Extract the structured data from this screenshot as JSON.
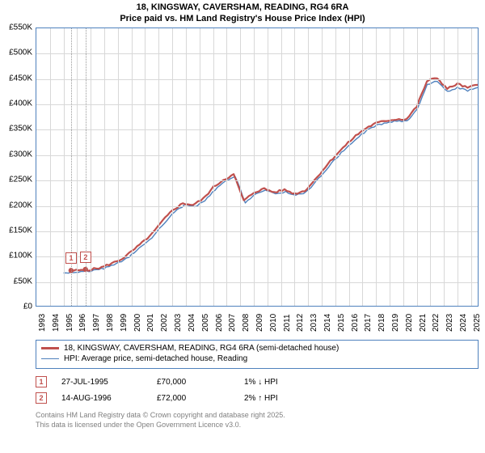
{
  "title_line1": "18, KINGSWAY, CAVERSHAM, READING, RG4 6RA",
  "title_line2": "Price paid vs. HM Land Registry's House Price Index (HPI)",
  "chart": {
    "type": "line",
    "background_color": "#ffffff",
    "border_color": "#4f81bd",
    "grid_color": "#d8d8d8",
    "x_years": [
      1993,
      1994,
      1995,
      1996,
      1997,
      1998,
      1999,
      2000,
      2001,
      2002,
      2003,
      2004,
      2005,
      2006,
      2007,
      2008,
      2009,
      2010,
      2011,
      2012,
      2013,
      2014,
      2015,
      2016,
      2017,
      2018,
      2019,
      2020,
      2021,
      2022,
      2023,
      2024,
      2025
    ],
    "x_year_min": 1993,
    "x_year_max": 2025.6,
    "y_min": 0,
    "y_max": 550,
    "y_ticks": [
      0,
      50,
      100,
      150,
      200,
      250,
      300,
      350,
      400,
      450,
      500,
      550
    ],
    "y_tick_labels": [
      "£0",
      "£50K",
      "£100K",
      "£150K",
      "£200K",
      "£250K",
      "£300K",
      "£350K",
      "£400K",
      "£450K",
      "£500K",
      "£550K"
    ],
    "label_fontsize": 10,
    "series": [
      {
        "name": "18, KINGSWAY, CAVERSHAM, READING, RG4 6RA (semi-detached house)",
        "color": "#c0504d",
        "width": 2.2,
        "data_start_year": 1995.56,
        "data": [
          70,
          70,
          72,
          76,
          84,
          93,
          108,
          125,
          143,
          168,
          190,
          203,
          200,
          212,
          235,
          250,
          260,
          208,
          225,
          232,
          225,
          230,
          222,
          228,
          250,
          275,
          298,
          318,
          337,
          352,
          362,
          367,
          370,
          370,
          395,
          445,
          452,
          430,
          440,
          432,
          438
        ]
      },
      {
        "name": "HPI: Average price, semi-detached house, Reading",
        "color": "#4f81bd",
        "width": 1.4,
        "data_start_year": 1995.0,
        "data": [
          65,
          66,
          68,
          70,
          74,
          82,
          90,
          105,
          122,
          140,
          165,
          186,
          200,
          196,
          208,
          230,
          246,
          256,
          205,
          222,
          228,
          222,
          226,
          219,
          225,
          246,
          270,
          293,
          313,
          332,
          347,
          358,
          363,
          366,
          366,
          390,
          438,
          446,
          424,
          433,
          426,
          432
        ]
      }
    ],
    "sale_markers": [
      {
        "n": 1,
        "year": 1995.56,
        "value": 70,
        "date": "27-JUL-1995",
        "price": "£70,000",
        "diff": "1% ↓ HPI",
        "diff_arrow": "down"
      },
      {
        "n": 2,
        "year": 1996.62,
        "value": 72,
        "date": "14-AUG-1996",
        "price": "£72,000",
        "diff": "2% ↑ HPI",
        "diff_arrow": "up"
      }
    ]
  },
  "legend": {
    "items": [
      {
        "color": "#c0504d",
        "width": 2.2,
        "label": "18, KINGSWAY, CAVERSHAM, READING, RG4 6RA (semi-detached house)"
      },
      {
        "color": "#4f81bd",
        "width": 1.4,
        "label": "HPI: Average price, semi-detached house, Reading"
      }
    ]
  },
  "attribution_line1": "Contains HM Land Registry data © Crown copyright and database right 2025.",
  "attribution_line2": "This data is licensed under the Open Government Licence v3.0."
}
